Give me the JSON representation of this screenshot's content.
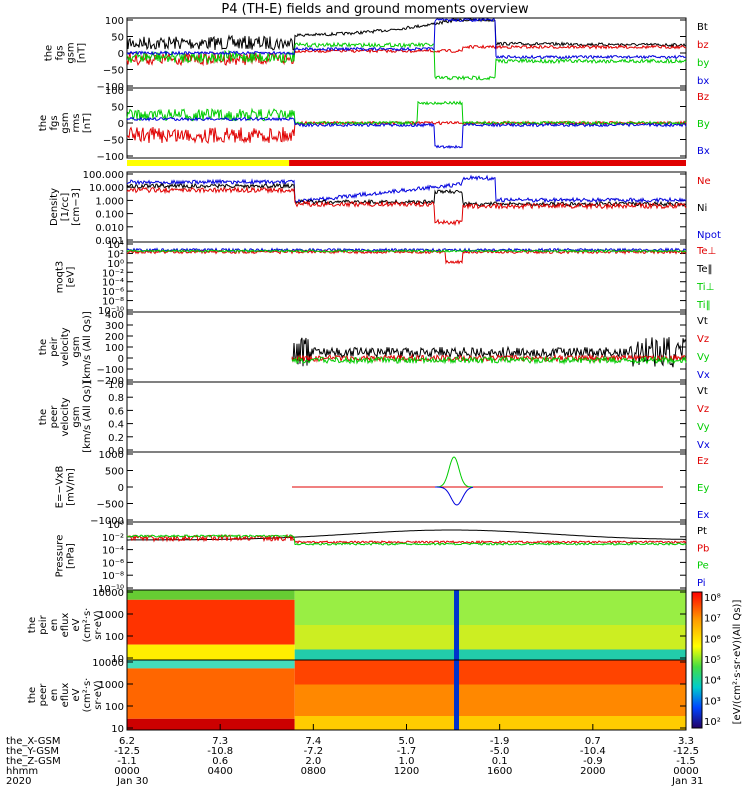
{
  "title": "P4 (TH-E) fields and ground moments overview",
  "colors": {
    "black": "#000000",
    "red": "#e00000",
    "green": "#00cc00",
    "blue": "#0000dd",
    "yellow": "#ffff00"
  },
  "chart_data": {
    "type": "line",
    "x_ticks": {
      "orbit_rows": [
        {
          "label": "the_X-GSM",
          "values": [
            "6.2",
            "7.3",
            "7.4",
            "5.0",
            "-1.9",
            "0.7",
            "3.3"
          ]
        },
        {
          "label": "the_Y-GSM",
          "values": [
            "-12.5",
            "-10.8",
            "-7.2",
            "-1.7",
            "-5.0",
            "-10.4",
            "-12.5"
          ]
        },
        {
          "label": "the_Z-GSM",
          "values": [
            "-1.1",
            "0.6",
            "2.0",
            "1.0",
            "0.1",
            "-0.9",
            "-1.5"
          ]
        },
        {
          "label": "hhmm",
          "values": [
            "0000",
            "0400",
            "0800",
            "1200",
            "1600",
            "2000",
            "0000"
          ]
        }
      ],
      "year": "2020",
      "date_start": "Jan 30",
      "date_end": "Jan 31"
    },
    "panels": [
      {
        "id": "fgs-gsm",
        "ylabel": [
          "the",
          "fgs",
          "gsm",
          "[nT]"
        ],
        "yticks": [
          "100",
          "50",
          "0",
          "−50",
          "−100"
        ],
        "legend": [
          {
            "t": "Bt",
            "c": "black"
          },
          {
            "t": "bz",
            "c": "red"
          },
          {
            "t": "by",
            "c": "green"
          },
          {
            "t": "bx",
            "c": "blue"
          }
        ]
      },
      {
        "id": "fgs-gsm-rms",
        "ylabel": [
          "the",
          "fgs",
          "gsm",
          "rms",
          "[nT]"
        ],
        "yticks": [
          "100",
          "50",
          "0",
          "−50",
          "−100"
        ],
        "legend": [
          {
            "t": "Bz",
            "c": "red"
          },
          {
            "t": "By",
            "c": "green"
          },
          {
            "t": "Bx",
            "c": "blue"
          }
        ]
      },
      {
        "id": "density",
        "ylabel": [
          "Density",
          "[1/cc]",
          "[cm−3]"
        ],
        "yticks": [
          "100.000",
          "10.000",
          "1.000",
          "0.100",
          "0.010",
          "0.001"
        ],
        "legend": [
          {
            "t": "Ne",
            "c": "red"
          },
          {
            "t": "Ni",
            "c": "black"
          },
          {
            "t": "Npot",
            "c": "blue"
          }
        ]
      },
      {
        "id": "temperature",
        "ylabel": [
          "moqt3",
          "[eV]"
        ],
        "yticks": [
          "10⁴",
          "10²",
          "10⁰",
          "10⁻²",
          "10⁻⁴",
          "10⁻⁶",
          "10⁻⁸",
          "10⁻¹⁰"
        ],
        "legend": [
          {
            "t": "Te⊥",
            "c": "red"
          },
          {
            "t": "Te‖",
            "c": "black"
          },
          {
            "t": "Ti⊥",
            "c": "green"
          },
          {
            "t": "Ti‖",
            "c": "green"
          }
        ]
      },
      {
        "id": "peir-velocity",
        "ylabel": [
          "the",
          "peir",
          "velocity",
          "gsm",
          "[km/s (All Qs)]"
        ],
        "yticks": [
          "400",
          "300",
          "200",
          "100",
          "0",
          "−100",
          "−200"
        ],
        "legend": [
          {
            "t": "Vt",
            "c": "black"
          },
          {
            "t": "Vz",
            "c": "red"
          },
          {
            "t": "Vy",
            "c": "green"
          },
          {
            "t": "Vx",
            "c": "blue"
          }
        ]
      },
      {
        "id": "peer-velocity",
        "ylabel": [
          "the",
          "peer",
          "velocity",
          "gsm",
          "[km/s (All Qs)]"
        ],
        "yticks": [
          "1.0",
          "0.8",
          "0.6",
          "0.4",
          "0.2",
          "0.0"
        ],
        "legend": [
          {
            "t": "Vt",
            "c": "black"
          },
          {
            "t": "Vz",
            "c": "red"
          },
          {
            "t": "Vy",
            "c": "green"
          },
          {
            "t": "Vx",
            "c": "blue"
          }
        ]
      },
      {
        "id": "efield",
        "ylabel": [
          "E=−VxB",
          "[mV/m]"
        ],
        "yticks": [
          "1000",
          "500",
          "0",
          "−500",
          "−1000"
        ],
        "legend": [
          {
            "t": "Ez",
            "c": "red"
          },
          {
            "t": "Ey",
            "c": "green"
          },
          {
            "t": "Ex",
            "c": "blue"
          }
        ]
      },
      {
        "id": "pressure",
        "ylabel": [
          "Pressure",
          "[nPa]"
        ],
        "yticks": [
          "10⁰",
          "10⁻²",
          "10⁻⁴",
          "10⁻⁶",
          "10⁻⁸",
          "10⁻¹⁰"
        ],
        "legend": [
          {
            "t": "Pt",
            "c": "black"
          },
          {
            "t": "Pb",
            "c": "red"
          },
          {
            "t": "Pe",
            "c": "green"
          },
          {
            "t": "Pi",
            "c": "blue"
          }
        ]
      },
      {
        "id": "peir-eflux",
        "ylabel": [
          "the",
          "peir",
          "en",
          "eflux",
          "eV",
          "(cm²·s·",
          "sr·eV)"
        ],
        "yticks": [
          "10000",
          "1000",
          "100",
          "10"
        ],
        "legend": []
      },
      {
        "id": "peer-eflux",
        "ylabel": [
          "the",
          "peer",
          "en",
          "eflux",
          "eV",
          "(cm²·s·",
          "sr·eV)"
        ],
        "yticks": [
          "10000",
          "1000",
          "100",
          "10"
        ],
        "legend": []
      }
    ],
    "colorbar": {
      "ticks": [
        "10⁸",
        "10⁷",
        "10⁶",
        "10⁵",
        "10⁴",
        "10³",
        "10²"
      ],
      "label": "[eV/(cm²·s·sr·eV)(All Qs)]"
    }
  }
}
